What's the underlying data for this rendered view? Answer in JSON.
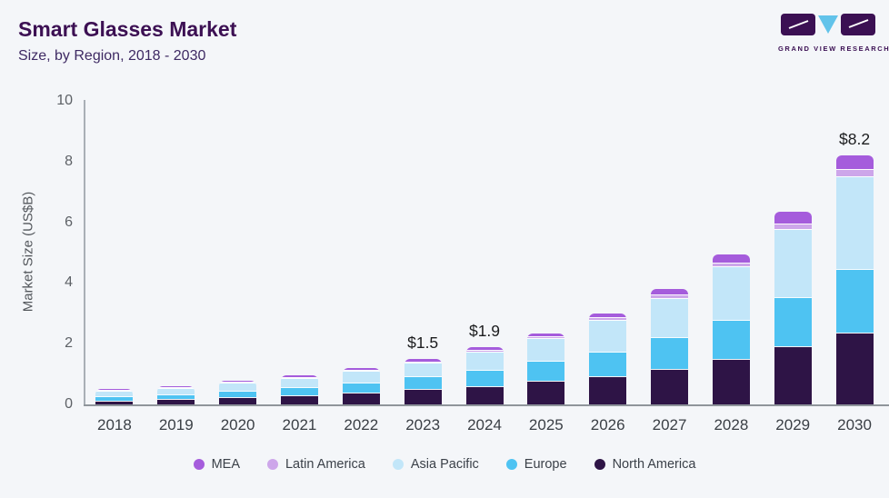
{
  "header": {
    "title": "Smart Glasses Market",
    "subtitle": "Size, by Region, 2018 - 2030"
  },
  "logo": {
    "text": "GRAND VIEW RESEARCH",
    "block_color": "#3b1053",
    "triangle_color": "#62c3ea"
  },
  "chart_data": {
    "type": "bar",
    "stacked": true,
    "title": "Smart Glasses Market",
    "subtitle": "Size, by Region, 2018 - 2030",
    "xlabel": "",
    "ylabel": "Market Size (US$B)",
    "ylim": [
      0,
      10
    ],
    "yticks": [
      0,
      2,
      4,
      6,
      8,
      10
    ],
    "grid": false,
    "legend_position": "bottom",
    "categories": [
      "2018",
      "2019",
      "2020",
      "2021",
      "2022",
      "2023",
      "2024",
      "2025",
      "2026",
      "2027",
      "2028",
      "2029",
      "2030"
    ],
    "series": [
      {
        "name": "North America",
        "color": "#2e1446",
        "values": [
          0.15,
          0.18,
          0.24,
          0.3,
          0.38,
          0.5,
          0.6,
          0.78,
          0.93,
          1.18,
          1.5,
          1.9,
          2.35
        ]
      },
      {
        "name": "Europe",
        "color": "#4ec3f2",
        "values": [
          0.15,
          0.16,
          0.22,
          0.27,
          0.35,
          0.43,
          0.55,
          0.67,
          0.8,
          1.03,
          1.28,
          1.62,
          2.1
        ]
      },
      {
        "name": "Asia Pacific",
        "color": "#c2e6f9",
        "values": [
          0.18,
          0.22,
          0.28,
          0.31,
          0.37,
          0.44,
          0.58,
          0.74,
          1.05,
          1.3,
          1.77,
          2.26,
          3.05
        ]
      },
      {
        "name": "Latin America",
        "color": "#cda6ea",
        "values": [
          0.01,
          0.02,
          0.02,
          0.03,
          0.04,
          0.05,
          0.06,
          0.06,
          0.08,
          0.1,
          0.13,
          0.18,
          0.24
        ]
      },
      {
        "name": "MEA",
        "color": "#a55cdc",
        "values": [
          0.01,
          0.02,
          0.02,
          0.04,
          0.05,
          0.08,
          0.11,
          0.1,
          0.14,
          0.19,
          0.27,
          0.39,
          0.46
        ]
      }
    ],
    "value_labels": {
      "2023": "$1.5",
      "2024": "$1.9",
      "2030": "$8.2"
    },
    "legend_order": [
      "MEA",
      "Latin America",
      "Asia Pacific",
      "Europe",
      "North America"
    ]
  }
}
